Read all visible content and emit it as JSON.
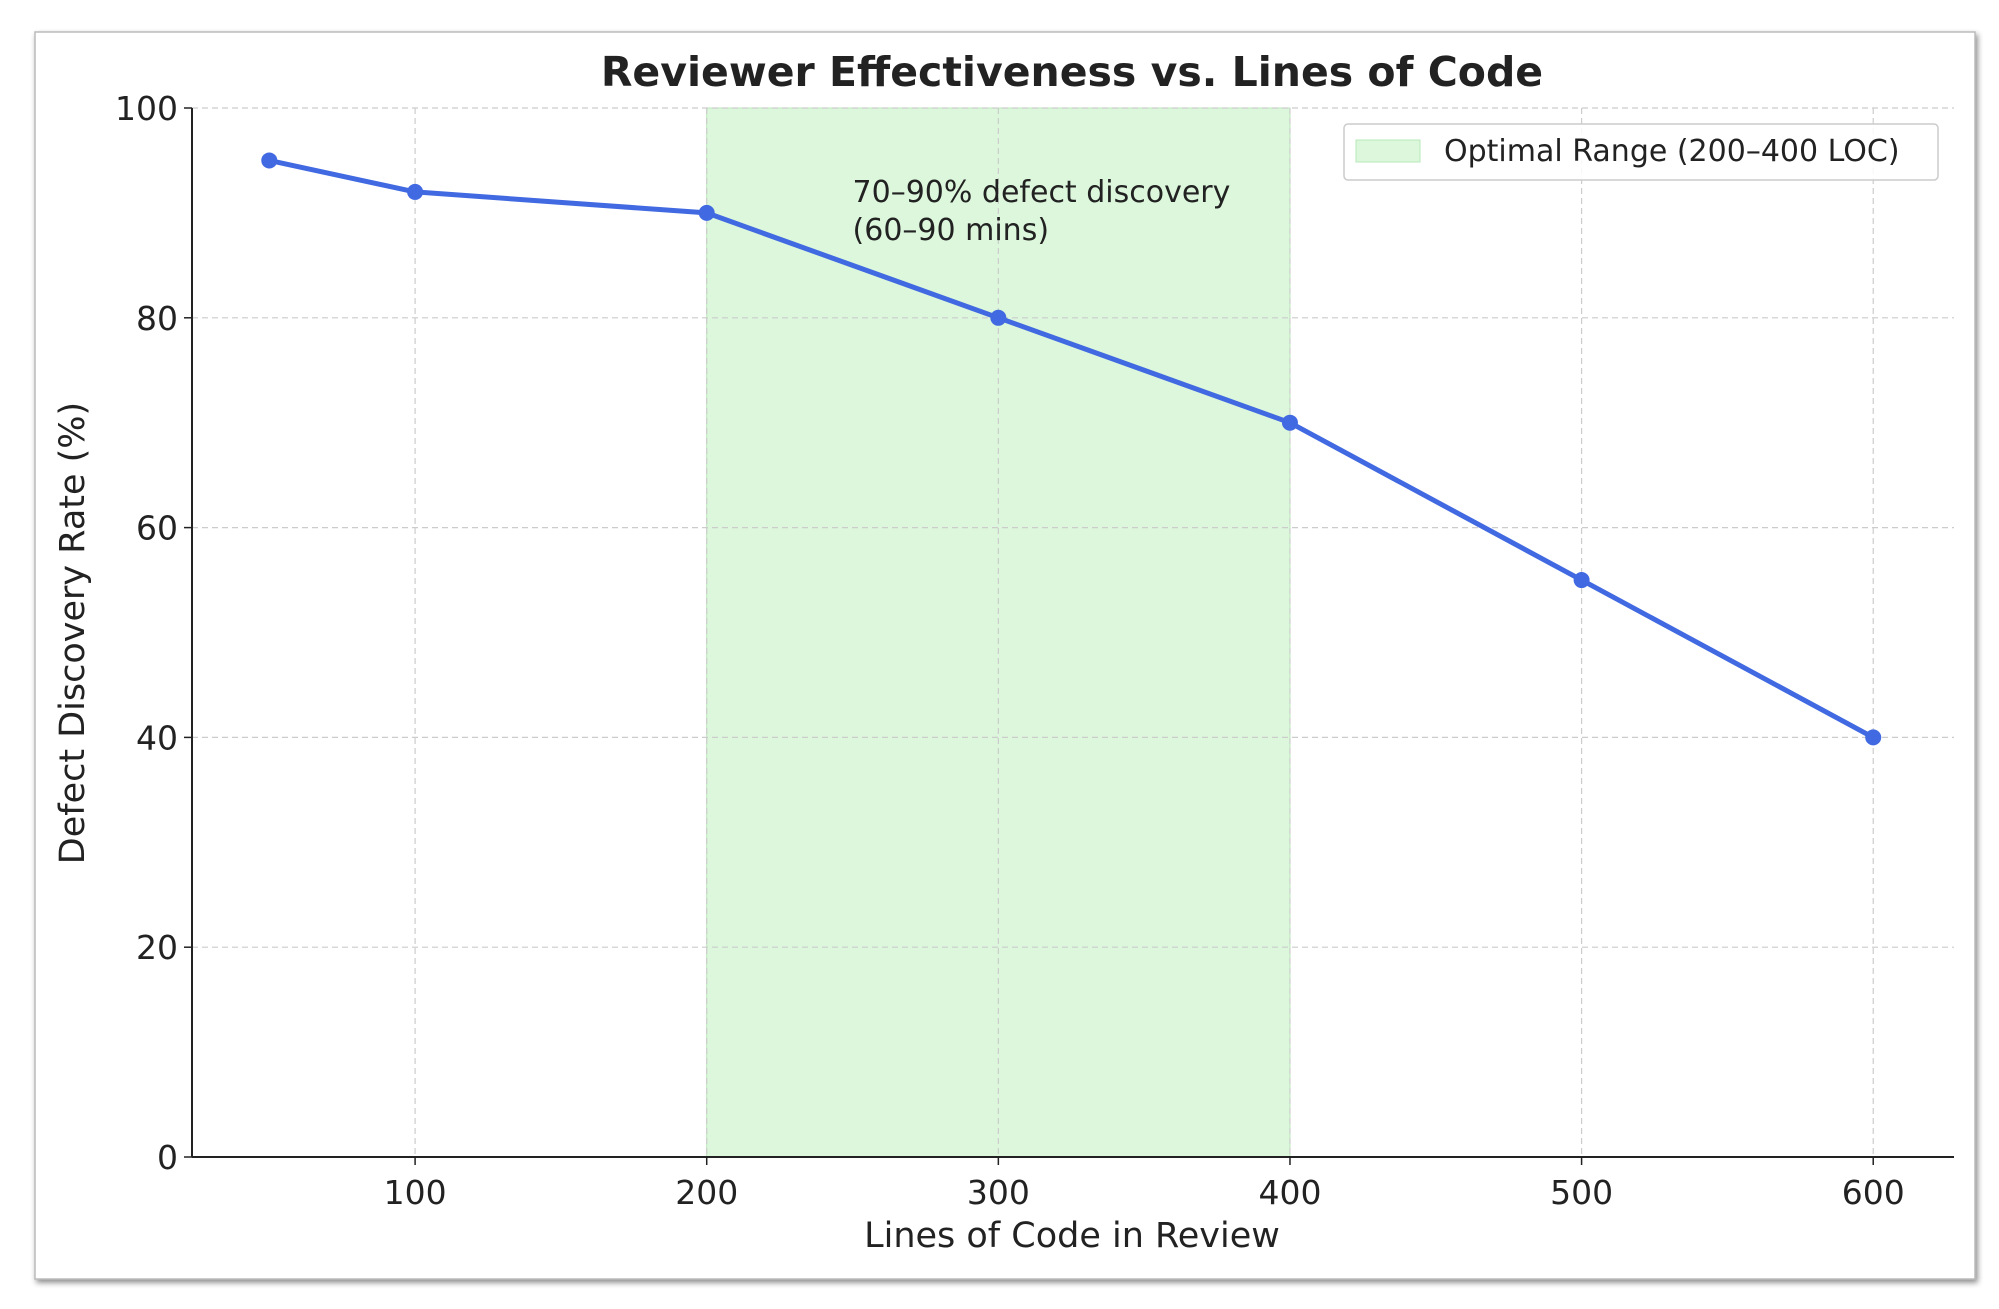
{
  "chart_data": {
    "type": "line",
    "title": "Reviewer Effectiveness vs. Lines of Code",
    "xlabel": "Lines of Code in Review",
    "ylabel": "Defect Discovery Rate (%)",
    "x": [
      50,
      100,
      200,
      300,
      400,
      500,
      600
    ],
    "series": [
      {
        "name": "Defect Discovery Rate",
        "values": [
          95,
          92,
          90,
          80,
          70,
          55,
          40
        ],
        "color": "#4169e1"
      }
    ],
    "xlim": [
      23.5,
      627.7
    ],
    "ylim": [
      0,
      100
    ],
    "xticks": [
      100,
      200,
      300,
      400,
      500,
      600
    ],
    "xtick_labels": [
      "100",
      "200",
      "300",
      "400",
      "500",
      "600"
    ],
    "yticks": [
      0,
      20,
      40,
      60,
      80,
      100
    ],
    "ytick_labels": [
      "0",
      "20",
      "40",
      "60",
      "80",
      "100"
    ],
    "grid": true,
    "shaded_region": {
      "x_start": 200,
      "x_end": 400,
      "color": "#dcf7dc",
      "label": "Optimal Range (200–400 LOC)"
    },
    "annotation": {
      "lines": [
        "70–90% defect discovery",
        "(60–90 mins)"
      ],
      "x": 250,
      "y": 92
    },
    "legend": {
      "placement": "top-right",
      "entries": [
        "Optimal Range (200–400 LOC)"
      ]
    }
  }
}
